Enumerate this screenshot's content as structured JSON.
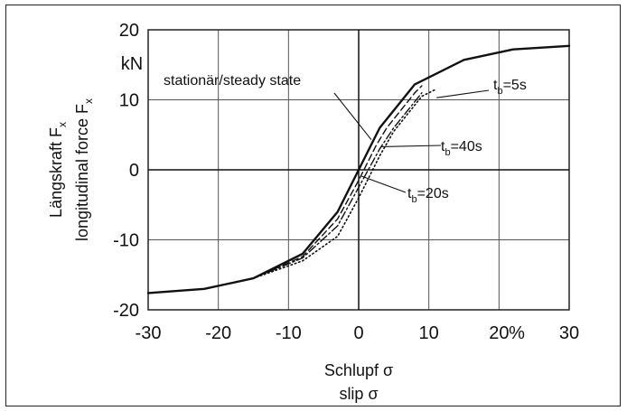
{
  "chart_data": {
    "type": "line",
    "xlim": [
      -30,
      30
    ],
    "ylim": [
      -20,
      20
    ],
    "x_ticks": [
      "-30",
      "-20",
      "-10",
      "0",
      "10",
      "20",
      "30"
    ],
    "x_unit": "%",
    "y_ticks": [
      "20",
      "10",
      "0",
      "-10",
      "-20"
    ],
    "y_unit": "kN",
    "grid": true,
    "xlabel_lines": [
      "Schlupf σ",
      "slip σ"
    ],
    "ylabel_lines": [
      "Längskraft Fx",
      "longitudinal force Fx"
    ],
    "series": [
      {
        "name": "stationär/steady state",
        "style": "solid",
        "x": [
          -30,
          -22,
          -15,
          -8,
          -3,
          0,
          3,
          8,
          15,
          22,
          30
        ],
        "y": [
          -17.6,
          -17.0,
          -15.5,
          -12.0,
          -6.0,
          0,
          6.0,
          12.2,
          15.7,
          17.2,
          17.7
        ]
      },
      {
        "name": "tb=5s",
        "style": "dashed",
        "x": [
          -30,
          -22,
          -15,
          -8,
          -3,
          0,
          2.5,
          4,
          8,
          9
        ],
        "y": [
          -17.6,
          -17.0,
          -15.5,
          -12.4,
          -7.0,
          -1.5,
          3.5,
          6.0,
          11.0,
          12.0
        ]
      },
      {
        "name": "tb=40s",
        "style": "dashdot",
        "x": [
          -30,
          -22,
          -15,
          -8,
          -3,
          0,
          3,
          5,
          9
        ],
        "y": [
          -17.6,
          -17.0,
          -15.5,
          -12.6,
          -8.0,
          -2.5,
          3.0,
          6.0,
          11.0
        ]
      },
      {
        "name": "tb=20s",
        "style": "dotted",
        "x": [
          -30,
          -22,
          -15,
          -8,
          -3,
          0,
          3,
          5,
          9,
          11
        ],
        "y": [
          -17.6,
          -17.0,
          -15.5,
          -13.0,
          -9.5,
          -4.0,
          2.0,
          5.5,
          10.5,
          11.5
        ]
      }
    ],
    "annotations": [
      {
        "text": "stationär/steady state"
      },
      {
        "prefix": "t",
        "sub": "b",
        "suffix": "=5s"
      },
      {
        "prefix": "t",
        "sub": "b",
        "suffix": "=40s"
      },
      {
        "prefix": "t",
        "sub": "b",
        "suffix": "=20s"
      }
    ]
  }
}
